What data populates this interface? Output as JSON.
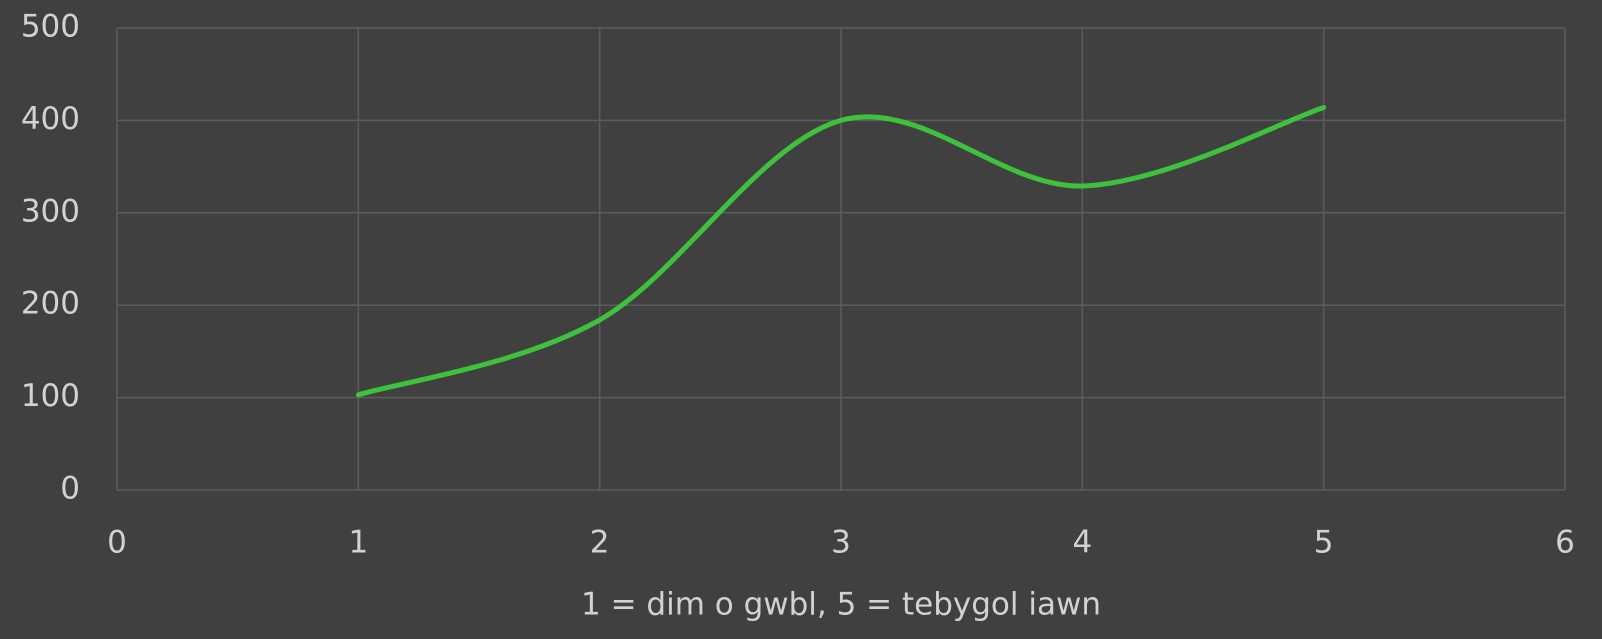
{
  "chart_data": {
    "type": "line",
    "x_label": "1 = dim o gwbl, 5 = tebygol iawn",
    "x": [
      1,
      2,
      3,
      4,
      5
    ],
    "series": [
      {
        "color": "#3ec23e",
        "values": [
          103,
          184,
          400,
          329,
          414
        ]
      }
    ],
    "smooth": true,
    "xlim": [
      0,
      6
    ],
    "xticks": [
      0,
      1,
      2,
      3,
      4,
      5,
      6
    ],
    "ylim": [
      0,
      500
    ],
    "yticks": [
      0,
      100,
      200,
      300,
      400,
      500
    ],
    "grid": true
  }
}
